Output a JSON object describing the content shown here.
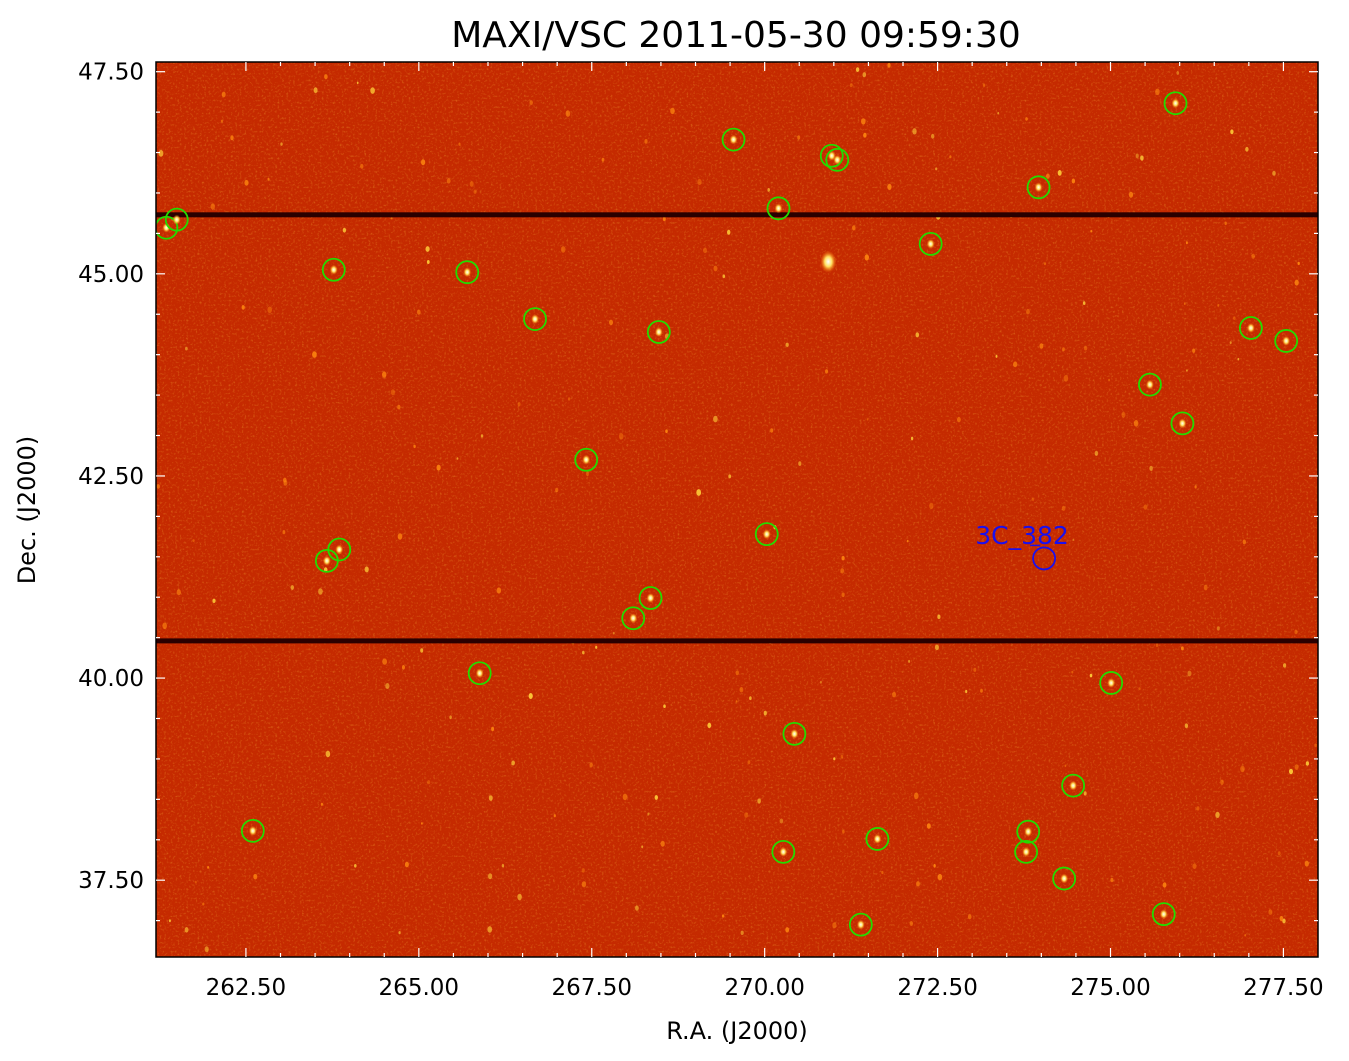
{
  "title": "MAXI/VSC 2011-05-30 09:59:30",
  "xlabel": "R.A. (J2000)",
  "ylabel": "Dec. (J2000)",
  "x_ticks": [
    "262.50",
    "265.00",
    "267.50",
    "270.00",
    "272.50",
    "275.00",
    "277.50"
  ],
  "y_ticks": [
    "47.50",
    "45.00",
    "42.50",
    "40.00",
    "37.50"
  ],
  "target_label": "3C_382",
  "colors": {
    "background": "#c52a00",
    "marker": "#22dd00",
    "target": "#1a10ee",
    "stripe": "#2a0000"
  },
  "chart_data": {
    "type": "scatter",
    "title": "MAXI/VSC 2011-05-30 09:59:30",
    "xlabel": "R.A. (J2000)",
    "ylabel": "Dec. (J2000)",
    "xlim": [
      261.2,
      278.0
    ],
    "ylim": [
      36.55,
      47.62
    ],
    "target": {
      "name": "3C_382",
      "ra": 274.04,
      "dec": 41.48
    },
    "sources": [
      {
        "ra": 261.35,
        "dec": 45.57
      },
      {
        "ra": 261.5,
        "dec": 45.67
      },
      {
        "ra": 263.77,
        "dec": 45.05
      },
      {
        "ra": 265.7,
        "dec": 45.02
      },
      {
        "ra": 266.68,
        "dec": 44.44
      },
      {
        "ra": 268.47,
        "dec": 44.28
      },
      {
        "ra": 269.55,
        "dec": 46.66
      },
      {
        "ra": 270.2,
        "dec": 45.81
      },
      {
        "ra": 270.97,
        "dec": 46.46
      },
      {
        "ra": 271.05,
        "dec": 46.41
      },
      {
        "ra": 272.4,
        "dec": 45.37
      },
      {
        "ra": 273.96,
        "dec": 46.07
      },
      {
        "ra": 275.94,
        "dec": 47.11
      },
      {
        "ra": 277.03,
        "dec": 44.33
      },
      {
        "ra": 277.54,
        "dec": 44.17
      },
      {
        "ra": 275.57,
        "dec": 43.63
      },
      {
        "ra": 276.04,
        "dec": 43.15
      },
      {
        "ra": 267.42,
        "dec": 42.7
      },
      {
        "ra": 270.03,
        "dec": 41.78
      },
      {
        "ra": 263.85,
        "dec": 41.59
      },
      {
        "ra": 263.67,
        "dec": 41.45
      },
      {
        "ra": 268.35,
        "dec": 40.99
      },
      {
        "ra": 268.1,
        "dec": 40.74
      },
      {
        "ra": 265.88,
        "dec": 40.06
      },
      {
        "ra": 275.01,
        "dec": 39.94
      },
      {
        "ra": 270.43,
        "dec": 39.31
      },
      {
        "ra": 274.46,
        "dec": 38.67
      },
      {
        "ra": 262.6,
        "dec": 38.11
      },
      {
        "ra": 273.81,
        "dec": 38.1
      },
      {
        "ra": 271.63,
        "dec": 38.01
      },
      {
        "ra": 270.27,
        "dec": 37.85
      },
      {
        "ra": 273.78,
        "dec": 37.85
      },
      {
        "ra": 274.33,
        "dec": 37.52
      },
      {
        "ra": 275.77,
        "dec": 37.08
      },
      {
        "ra": 271.39,
        "dec": 36.95
      }
    ],
    "dark_stripes_dec": [
      45.73,
      40.46
    ]
  }
}
